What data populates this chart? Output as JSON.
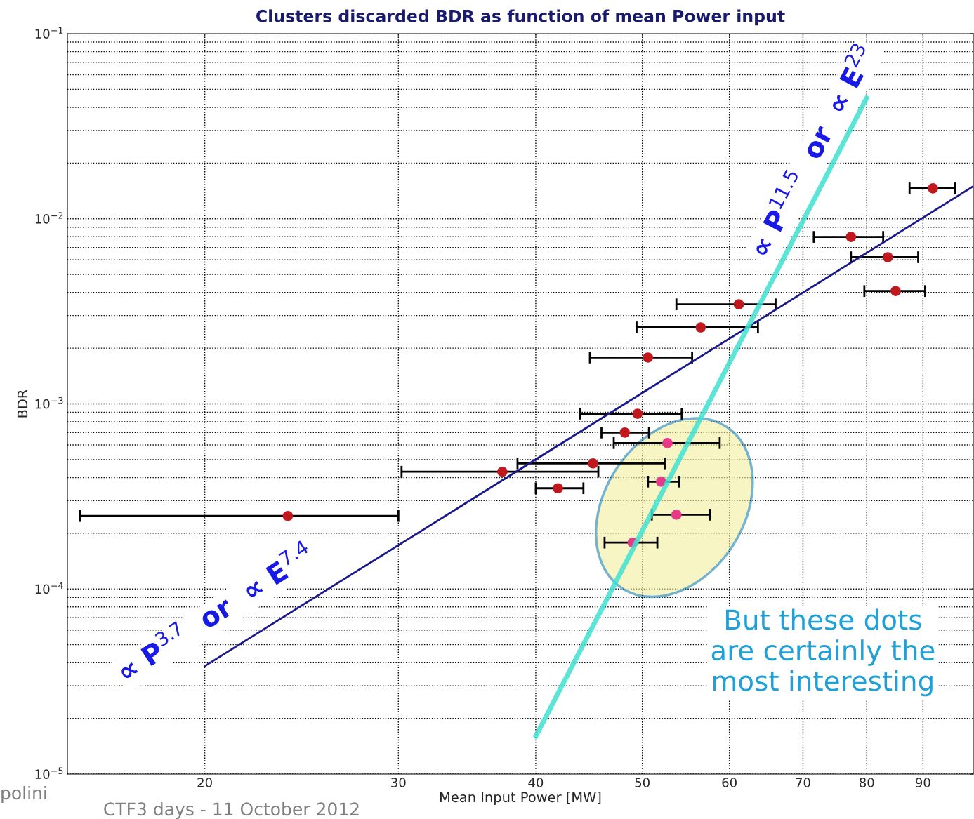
{
  "chart_data": {
    "type": "scatter",
    "title": "Clusters discarded BDR as function of mean Power input",
    "xlabel": "Mean Input Power [MW]",
    "ylabel": "BDR",
    "log": "xy",
    "grid": true,
    "xlim": [
      15,
      100
    ],
    "xticks": [
      20,
      30,
      40,
      50,
      60,
      70,
      80,
      90
    ],
    "ylim": [
      1e-05,
      0.1
    ],
    "yticks": [
      {
        "value": 1e-05,
        "label": "10$^{−5}$"
      },
      {
        "value": 0.0001,
        "label": "10$^{−4}$"
      },
      {
        "value": 0.001,
        "label": "10$^{−3}$"
      },
      {
        "value": 0.01,
        "label": "10$^{−2}$"
      },
      {
        "value": 0.1,
        "label": "10$^{−1}$"
      }
    ],
    "series": [
      {
        "marker": "circle",
        "color": "#c0181c",
        "x": [
          23.8,
          37.3,
          41.9,
          45.1,
          48.2,
          49.5,
          50.6,
          56.5,
          61.2,
          77.4,
          83.6,
          85.0,
          91.9
        ],
        "values": [
          0.000248,
          0.00043,
          0.00035,
          0.000477,
          0.0007,
          0.000885,
          0.00178,
          0.00259,
          0.00345,
          0.00798,
          0.0062,
          0.00407,
          0.0146
        ],
        "xerrors": [
          [
            15.4,
            30.0
          ],
          [
            30.2,
            45.6
          ],
          [
            40.0,
            44.2
          ],
          [
            38.5,
            52.4
          ],
          [
            45.9,
            50.7
          ],
          [
            43.9,
            54.3
          ],
          [
            44.8,
            55.5
          ],
          [
            49.4,
            63.7
          ],
          [
            53.7,
            66.1
          ],
          [
            71.6,
            82.8
          ],
          [
            77.4,
            89.1
          ],
          [
            79.6,
            90.4
          ],
          [
            87.5,
            96.3
          ]
        ]
      },
      {
        "marker": "circle",
        "color": "#e8388a",
        "x": [
          52.7,
          52.0,
          53.7,
          49.0
        ],
        "values": [
          0.000614,
          0.00038,
          0.000252,
          0.000178
        ],
        "xerrors": [
          [
            47.1,
            58.8
          ],
          [
            50.6,
            54.0
          ],
          [
            51.0,
            57.6
          ],
          [
            46.2,
            51.6
          ]
        ]
      },
      {
        "type": "line",
        "color": "#1a1a8c",
        "x": [
          20,
          100
        ],
        "values": [
          3.83e-05,
          0.015
        ]
      },
      {
        "type": "line",
        "color": "#40e0d0",
        "x": [
          40,
          80
        ],
        "values": [
          1.6e-05,
          0.045
        ]
      }
    ],
    "annotations": [
      "∝ P$^{3.7}$  or  ∝ E$^{7.4}$",
      "∝ P$^{11.5}$  or  ∝ E$^{23}$",
      "But these dots\nare certainly the\nmost interesting",
      "CTF3 days - 11 October 2012",
      "polini"
    ]
  }
}
